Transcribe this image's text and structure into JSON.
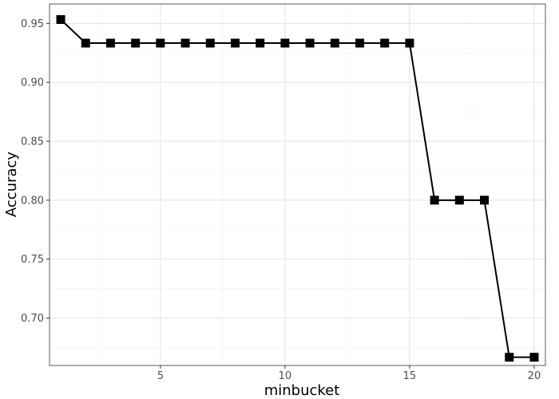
{
  "chart_data": {
    "type": "line",
    "title": "",
    "xlabel": "minbucket",
    "ylabel": "Accuracy",
    "xlim": [
      0.55,
      20.45
    ],
    "ylim": [
      0.6597,
      0.9665
    ],
    "x_ticks": [
      5,
      10,
      15,
      20
    ],
    "y_ticks": [
      0.7,
      0.75,
      0.8,
      0.85,
      0.9,
      0.95
    ],
    "x_tick_labels": [
      "5",
      "10",
      "15",
      "20"
    ],
    "y_tick_labels": [
      "0.70",
      "0.75",
      "0.80",
      "0.85",
      "0.90",
      "0.95"
    ],
    "grid": true,
    "legend": "none",
    "series": [
      {
        "color": "#000000",
        "marker": "square",
        "x": [
          1,
          2,
          3,
          4,
          5,
          6,
          7,
          8,
          9,
          10,
          11,
          12,
          13,
          14,
          15,
          16,
          17,
          18,
          19,
          20
        ],
        "y": [
          0.9533,
          0.9333,
          0.9333,
          0.9333,
          0.9333,
          0.9333,
          0.9333,
          0.9333,
          0.9333,
          0.9333,
          0.9333,
          0.9333,
          0.9333,
          0.9333,
          0.9333,
          0.8,
          0.8,
          0.8,
          0.6667,
          0.6667
        ]
      }
    ]
  }
}
